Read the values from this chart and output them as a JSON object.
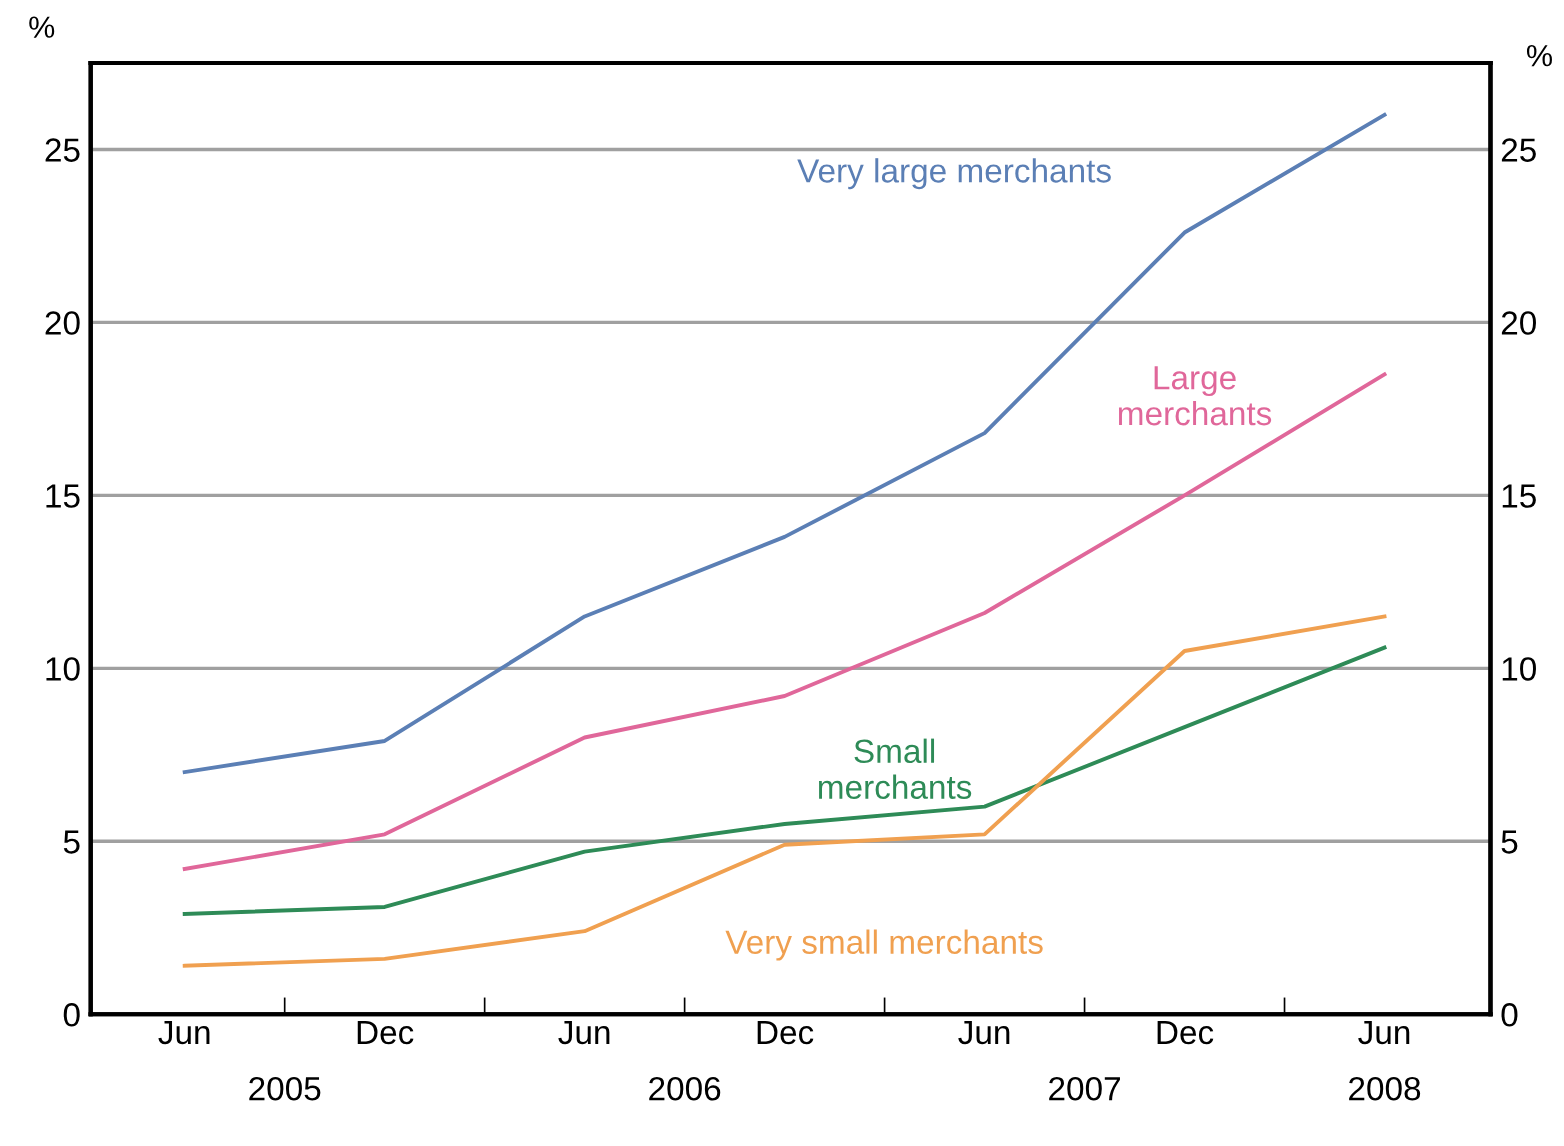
{
  "chart_data": {
    "type": "line",
    "categories": [
      "Jun",
      "Dec",
      "Jun",
      "Dec",
      "Jun",
      "Dec",
      "Jun"
    ],
    "series": [
      {
        "name": "Very large merchants",
        "color": "#5b7fb5",
        "values": [
          7.0,
          7.9,
          11.5,
          13.8,
          16.8,
          22.6,
          26.0
        ]
      },
      {
        "name": "Large merchants",
        "color": "#e0679a",
        "values": [
          4.2,
          5.2,
          8.0,
          9.2,
          11.6,
          15.0,
          18.5
        ]
      },
      {
        "name": "Small merchants",
        "color": "#2e8b57",
        "values": [
          2.9,
          3.1,
          4.7,
          5.5,
          6.0,
          8.3,
          10.6
        ]
      },
      {
        "name": "Very small merchants",
        "color": "#f0a050",
        "values": [
          1.4,
          1.6,
          2.4,
          4.9,
          5.2,
          10.5,
          11.5
        ]
      }
    ],
    "ylabel": "%",
    "y2label": "%",
    "ylim": [
      0,
      27.5
    ],
    "yticks": [
      0,
      5,
      10,
      15,
      20,
      25
    ],
    "y2lim": [
      0,
      27.5
    ],
    "y2ticks": [
      0,
      5,
      10,
      15,
      20,
      25
    ],
    "annotations": [
      "2005",
      "2006",
      "2007",
      "2008"
    ],
    "grid": "y",
    "legend": false,
    "marker": "none",
    "line_style": "solid"
  }
}
